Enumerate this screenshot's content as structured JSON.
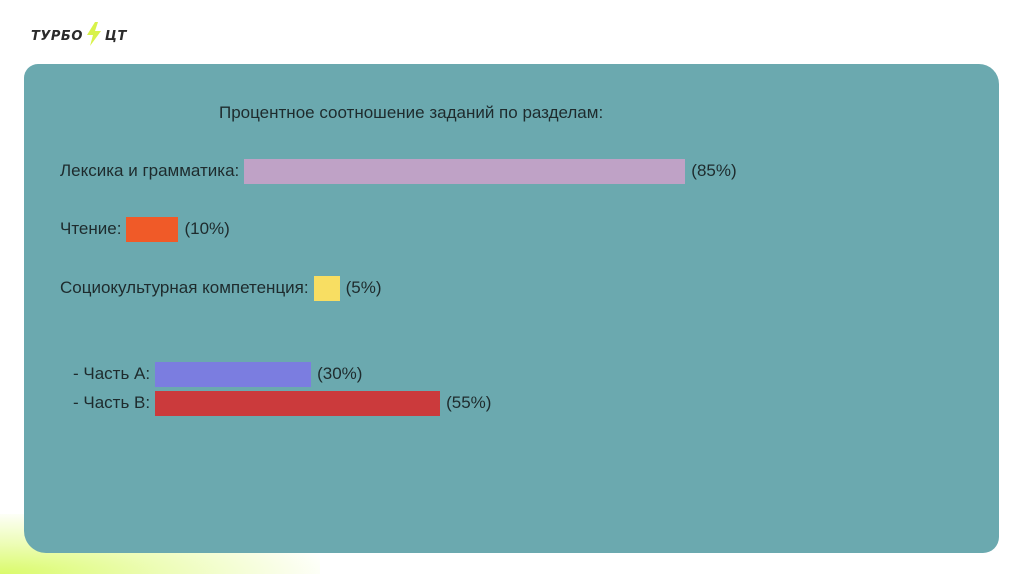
{
  "logo": {
    "left": "ТУРБО",
    "right": "ЦТ"
  },
  "chart_data": {
    "type": "bar",
    "orientation": "horizontal",
    "title": "Процентное соотношение заданий по разделам:",
    "bars": [
      {
        "label": "Лексика и грамматика:",
        "value": 85,
        "value_label": "(85%)",
        "color": "#bfa2c6"
      },
      {
        "label": "Чтение:",
        "value": 10,
        "value_label": "(10%)",
        "color": "#f05a28"
      },
      {
        "label": "Социокультурная компетенция:",
        "value": 5,
        "value_label": "(5%)",
        "color": "#f8de62"
      },
      {
        "label": "- Часть А:",
        "value": 30,
        "value_label": "(30%)",
        "color": "#7b7de0"
      },
      {
        "label": "- Часть В:",
        "value": 55,
        "value_label": "(55%)",
        "color": "#cb3a3c"
      }
    ],
    "xlim": [
      0,
      100
    ],
    "grid": false
  }
}
